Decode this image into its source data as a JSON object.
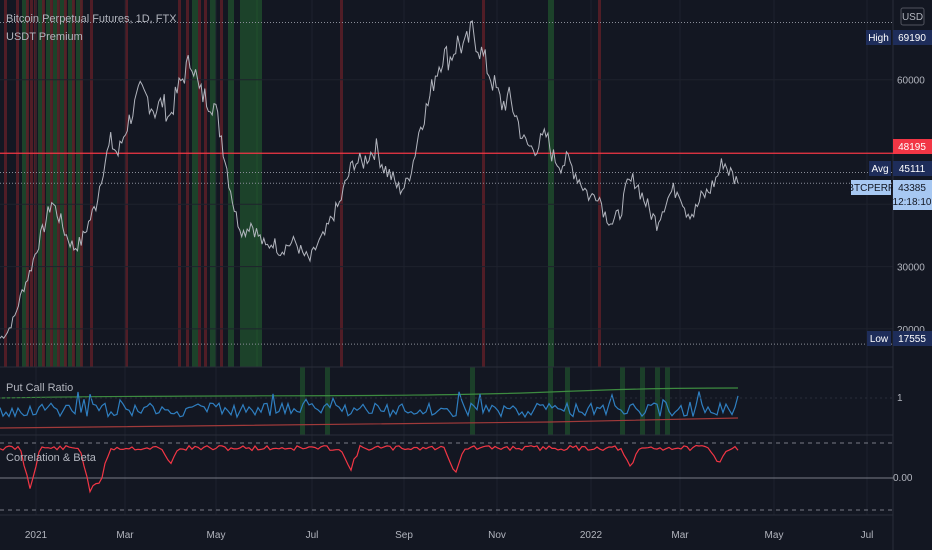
{
  "header": {
    "symbol_line": "Bitcoin Perpetual Futures, 1D, FTX",
    "indicator": "USDT Premium",
    "currency": "USD"
  },
  "panes": {
    "pcr_label": "Put Call Ratio",
    "corr_label": "Correlation & Beta"
  },
  "price_tags": {
    "high_label": "High",
    "high_value": "69190",
    "red_value": "48195",
    "avg_label": "Avg",
    "avg_value": "45111",
    "sym_label": "BTCPERP",
    "sym_value": "43385",
    "countdown": "12:18:10",
    "low_label": "Low",
    "low_value": "17555"
  },
  "colors": {
    "background": "#131722",
    "price_line": "#b2b5be",
    "red_hline": "#f23645",
    "red_band": "#5c1f27",
    "green_band": "#1e4a2c",
    "pcr_line": "#2f7fc1",
    "pcr_upper": "#3d8b40",
    "pcr_lower": "#a03a3a",
    "corr_line": "#f23645",
    "tag_navy": "#1e2d5a",
    "tag_red": "#f23645",
    "tag_blue": "#a7c8f2"
  },
  "chart_data": {
    "type": "line",
    "title": "Bitcoin Perpetual Futures, 1D, FTX",
    "x_ticks": [
      "2021",
      "Mar",
      "May",
      "Jul",
      "Sep",
      "Nov",
      "2022",
      "Mar",
      "May",
      "Jul"
    ],
    "price_axis": {
      "ticks": [
        20000,
        30000,
        40000,
        60000
      ],
      "tick_labels": [
        "20000",
        "30000",
        "",
        "60000"
      ],
      "range": [
        15000,
        72000
      ],
      "high": 69190,
      "low": 17555,
      "avg": 45111,
      "last": 43385,
      "red_level": 48195
    },
    "pcr_axis": {
      "ticks": [
        1
      ],
      "tick_labels": [
        "1"
      ]
    },
    "corr_axis": {
      "ticks": [
        0
      ],
      "tick_labels": [
        "0.00"
      ]
    },
    "series": [
      {
        "values": [
          18500,
          19500,
          22000,
          26000,
          29000,
          33000,
          36500,
          40500,
          38000,
          35000,
          33000,
          34000,
          37000,
          40000,
          46000,
          50000,
          48000,
          52000,
          55000,
          58000,
          57000,
          55000,
          56500,
          54000,
          58000,
          61000,
          63500,
          58000,
          57000,
          56000,
          51000,
          44000,
          38000,
          35500,
          37000,
          35000,
          33000,
          34000,
          32500,
          33500,
          34000,
          32000,
          31000,
          33500,
          35000,
          38000,
          40000,
          44000,
          47000,
          46500,
          48000,
          49000,
          46000,
          44500,
          42500,
          43000,
          47000,
          53000,
          56000,
          61000,
          64000,
          63500,
          66000,
          65000,
          68000,
          65000,
          62000,
          59000,
          56000,
          57000,
          54000,
          50000,
          49000,
          49500,
          51000,
          47500,
          46500,
          47000,
          45000,
          43000,
          41000,
          42000,
          38500,
          37000,
          38500,
          43000,
          44000,
          41500,
          39000,
          37000,
          40000,
          42000,
          42500,
          39000,
          38500,
          41000,
          42000,
          44000,
          47000,
          45000,
          43385
        ]
      }
    ]
  }
}
